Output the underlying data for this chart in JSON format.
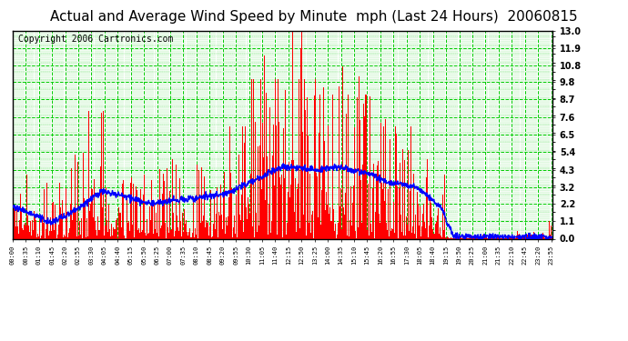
{
  "title": "Actual and Average Wind Speed by Minute  mph (Last 24 Hours)  20060815",
  "copyright": "Copyright 2006 Cartronics.com",
  "yticks": [
    0.0,
    1.1,
    2.2,
    3.2,
    4.3,
    5.4,
    6.5,
    7.6,
    8.7,
    9.8,
    10.8,
    11.9,
    13.0
  ],
  "ylim": [
    0.0,
    13.0
  ],
  "background_color": "#ffffff",
  "plot_bg_color": "#ffffff",
  "bar_color": "#ff0000",
  "line_color": "#0000ff",
  "grid_color": "#00cc00",
  "title_fontsize": 11,
  "copyright_fontsize": 7,
  "n_minutes": 1440,
  "tick_interval": 35
}
